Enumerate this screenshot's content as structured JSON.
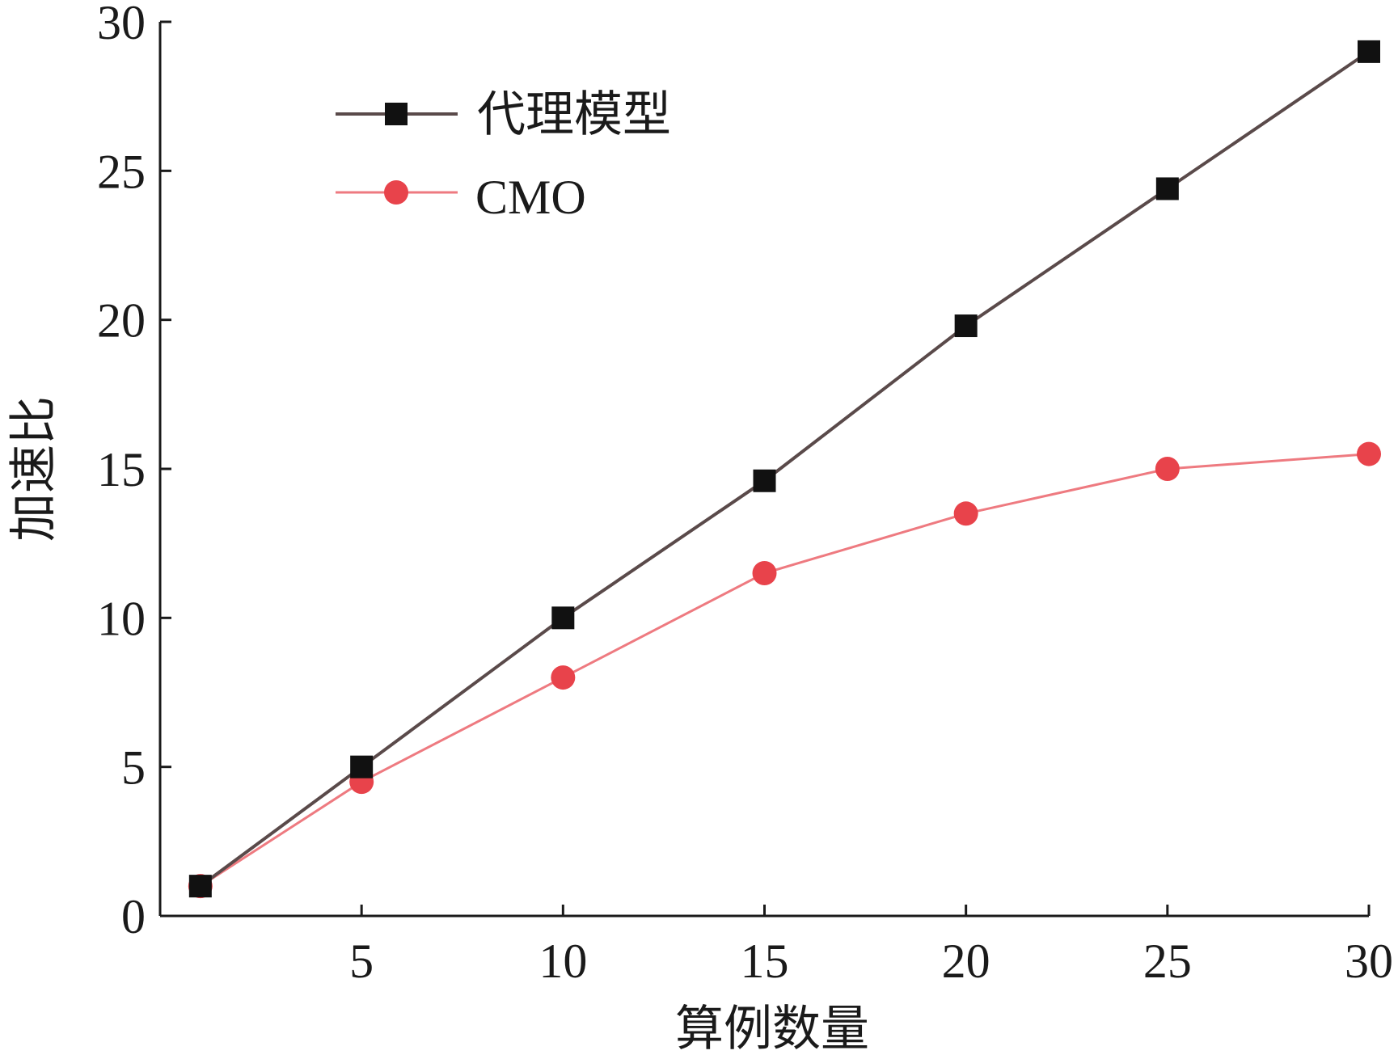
{
  "chart_data": {
    "type": "line",
    "title": "",
    "xlabel": "算例数量",
    "ylabel": "加速比",
    "xlim": [
      0,
      30
    ],
    "ylim": [
      0,
      30
    ],
    "x_ticks": [
      5,
      10,
      15,
      20,
      25,
      30
    ],
    "y_ticks": [
      0,
      5,
      10,
      15,
      20,
      25,
      30
    ],
    "grid": false,
    "legend_position": "top-left",
    "x": [
      1,
      5,
      10,
      15,
      20,
      25,
      30
    ],
    "series": [
      {
        "name": "代理模型",
        "marker": "square",
        "color": "#111111",
        "line_color": "#5a4a4a",
        "values": [
          1.0,
          5.0,
          10.0,
          14.6,
          19.8,
          24.4,
          29.0
        ]
      },
      {
        "name": "CMO",
        "marker": "circle",
        "color": "#e8434b",
        "line_color": "#ee7a80",
        "values": [
          1.0,
          4.5,
          8.0,
          11.5,
          13.5,
          15.0,
          15.5
        ]
      }
    ]
  }
}
